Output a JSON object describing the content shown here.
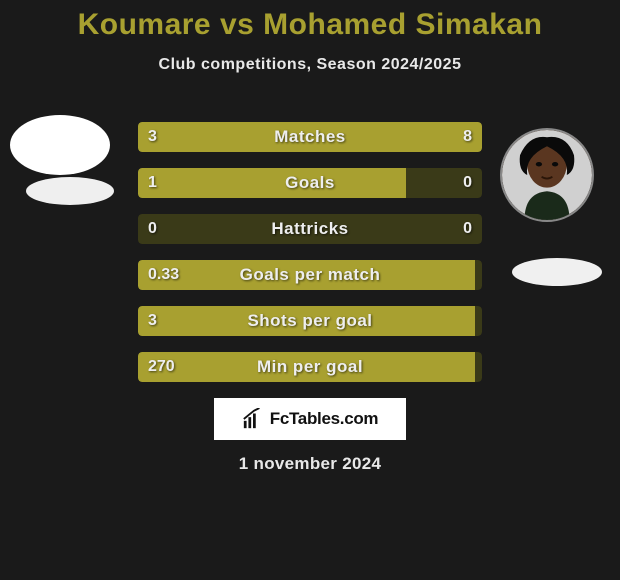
{
  "background_color": "#1a1a1a",
  "title": {
    "player_left": "Koumare",
    "vs": " vs ",
    "player_right": "Mohamed Simakan",
    "color": "#a8a030",
    "fontsize": 30,
    "fontweight": 800
  },
  "subtitle": {
    "text": "Club competitions, Season 2024/2025",
    "color": "#e8e8e8",
    "fontsize": 16
  },
  "avatars": {
    "left_has_photo": false,
    "right_has_photo": true
  },
  "bar_style": {
    "track_color": "#3a3a18",
    "fill_color": "#a8a030",
    "height": 30,
    "gap": 16,
    "label_color": "#eeeeee",
    "label_fontsize": 17,
    "value_fontsize": 16,
    "border_radius": 4
  },
  "rows": [
    {
      "label": "Matches",
      "left_value": "3",
      "right_value": "8",
      "left_pct": 27,
      "right_pct": 73
    },
    {
      "label": "Goals",
      "left_value": "1",
      "right_value": "0",
      "left_pct": 78,
      "right_pct": 0
    },
    {
      "label": "Hattricks",
      "left_value": "0",
      "right_value": "0",
      "left_pct": 0,
      "right_pct": 0
    },
    {
      "label": "Goals per match",
      "left_value": "0.33",
      "right_value": "",
      "left_pct": 98,
      "right_pct": 0
    },
    {
      "label": "Shots per goal",
      "left_value": "3",
      "right_value": "",
      "left_pct": 98,
      "right_pct": 0
    },
    {
      "label": "Min per goal",
      "left_value": "270",
      "right_value": "",
      "left_pct": 98,
      "right_pct": 0
    }
  ],
  "branding": {
    "text": "FcTables.com",
    "background": "#ffffff",
    "color": "#111111"
  },
  "date": {
    "text": "1 november 2024",
    "color": "#e8e8e8",
    "fontsize": 17
  }
}
